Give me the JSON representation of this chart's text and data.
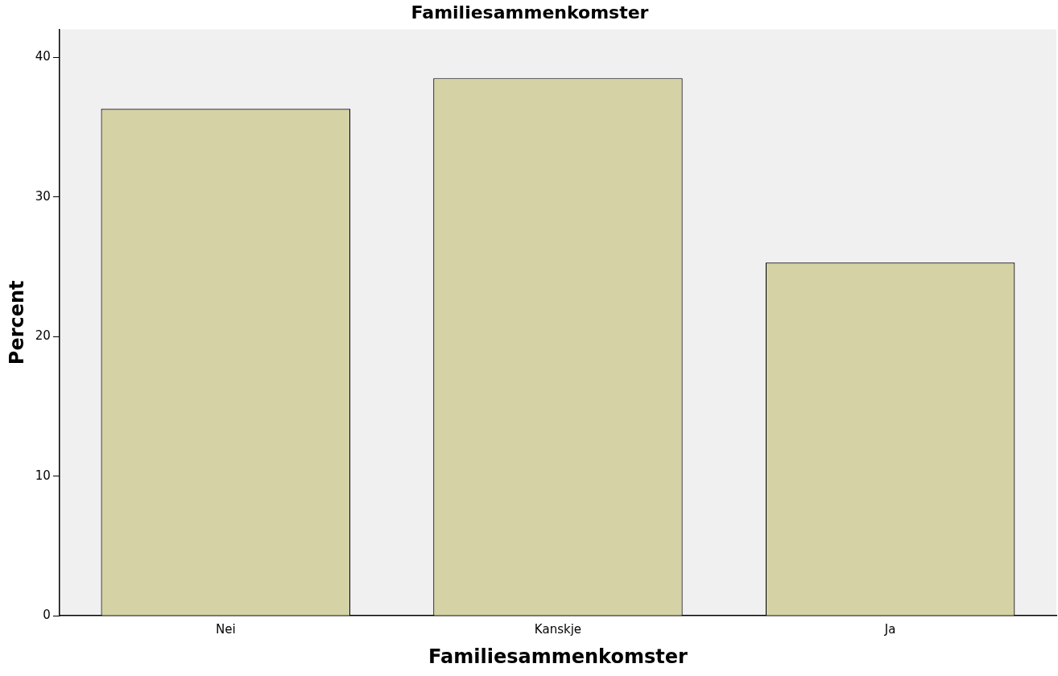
{
  "chart_data": {
    "type": "bar",
    "title": "Familiesammenkomster",
    "xlabel": "Familiesammenkomster",
    "ylabel": "Percent",
    "categories": [
      "Nei",
      "Kanskje",
      "Ja"
    ],
    "values": [
      36.3,
      38.5,
      25.3
    ],
    "color": "#d5d2a6",
    "ylim": [
      0,
      42
    ],
    "yticks": [
      0,
      10,
      20,
      30,
      40
    ],
    "grid": false,
    "legend": false
  }
}
